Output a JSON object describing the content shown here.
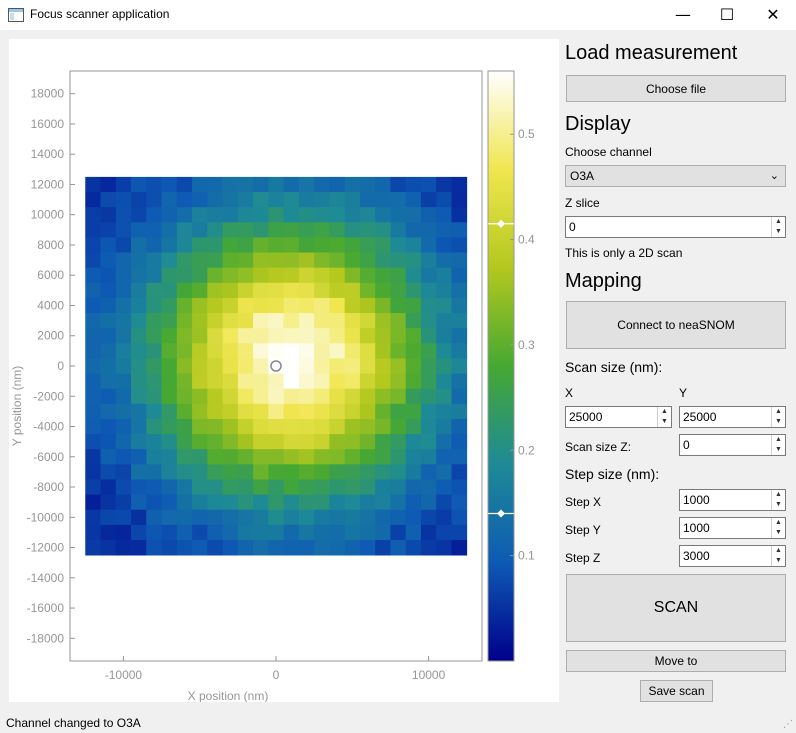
{
  "window": {
    "title": "Focus scanner application",
    "minimize": "—",
    "maximize": "☐",
    "close": "✕"
  },
  "colors": {
    "colormap": [
      "#00008b",
      "#0e5ab4",
      "#1e8a96",
      "#46a832",
      "#b4c81e",
      "#f0e650",
      "#ffffff"
    ],
    "panel_bg": "#f0f0f0"
  },
  "sidebar": {
    "load_title": "Load measurement",
    "choose_file": "Choose file",
    "display_title": "Display",
    "choose_channel_label": "Choose channel",
    "channel_value": "O3A",
    "z_slice_label": "Z slice",
    "z_slice_value": "0",
    "scan_note": "This is only a 2D scan",
    "mapping_title": "Mapping",
    "connect_button": "Connect to neaSNOM",
    "scan_size_title": "Scan size (nm):",
    "x_label": "X",
    "y_label": "Y",
    "scan_x": "25000",
    "scan_y": "25000",
    "scan_size_z_label": "Scan size Z:",
    "scan_size_z": "0",
    "step_size_title": "Step size (nm):",
    "step_x_label": "Step X",
    "step_x": "1000",
    "step_y_label": "Step Y",
    "step_y": "1000",
    "step_z_label": "Step Z",
    "step_z": "3000",
    "scan_button": "SCAN",
    "move_button": "Move to",
    "save_button": "Save scan"
  },
  "status": {
    "message": "Channel changed to O3A"
  },
  "chart_data": {
    "type": "heatmap",
    "xlabel": "X position (nm)",
    "ylabel": "Y position (nm)",
    "xlim": [
      -13500,
      13500
    ],
    "ylim": [
      -19500,
      19500
    ],
    "x_ticks": [
      -10000,
      0,
      10000
    ],
    "x_tick_labels": [
      "-10000",
      "0",
      "10000"
    ],
    "y_ticks": [
      18000,
      16000,
      14000,
      12000,
      10000,
      8000,
      6000,
      4000,
      2000,
      0,
      -2000,
      -4000,
      -6000,
      -8000,
      -10000,
      -12000,
      -14000,
      -16000,
      -18000
    ],
    "y_tick_labels": [
      "18000",
      "16000",
      "14000",
      "12000",
      "10000",
      "8000",
      "6000",
      "4000",
      "2000",
      "0",
      "-2000",
      "-4000",
      "-6000",
      "-8000",
      "-10000",
      "-12000",
      "-14000",
      "-16000",
      "-18000"
    ],
    "grid": {
      "x_start": -12500,
      "y_start": 12500,
      "step": 1000,
      "cols": 25,
      "rows": 25
    },
    "peak": {
      "x": 1000,
      "y": 500,
      "value": 0.56
    },
    "background": 0.03,
    "sigma": 6500,
    "marker": {
      "x": 0,
      "y": 0
    },
    "colorbar": {
      "min": 0.0,
      "max": 0.56,
      "ticks": [
        0.1,
        0.2,
        0.3,
        0.4,
        0.5
      ],
      "tick_labels": [
        "0.1",
        "0.2",
        "0.3",
        "0.4",
        "0.5"
      ],
      "level_low": 0.14,
      "level_high": 0.415
    }
  }
}
